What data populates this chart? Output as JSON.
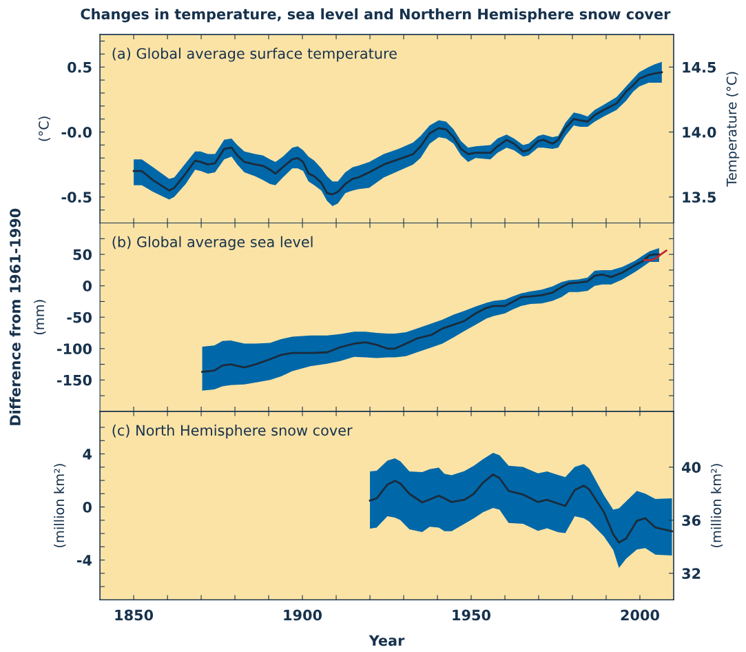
{
  "chart_data": [
    {
      "type": "line",
      "title": "Changes in temperature, sea level and Northern Hemisphere snow cover",
      "subtitle": "(a) Global average surface temperature",
      "ylabel": "(°C)",
      "y2label": "Temperature (°C)",
      "xlim": [
        1840,
        2010
      ],
      "xticks": [
        1850,
        {
          "value": 1860,
          "label": null
        },
        {
          "value": 1870,
          "label": null
        },
        {
          "value": 1880,
          "label": null
        },
        {
          "value": 1890,
          "label": null
        },
        1900,
        {
          "value": 1910,
          "label": null
        },
        {
          "value": 1920,
          "label": null
        },
        {
          "value": 1930,
          "label": null
        },
        {
          "value": 1940,
          "label": null
        },
        1950,
        {
          "value": 1960,
          "label": null
        },
        {
          "value": 1970,
          "label": null
        },
        {
          "value": 1980,
          "label": null
        },
        {
          "value": 1990,
          "label": null
        },
        2000
      ],
      "ylim": [
        -0.7,
        0.75
      ],
      "yticks": [
        {
          "value": -0.6,
          "label": null
        },
        -0.5,
        {
          "value": -0.4,
          "label": null
        },
        {
          "value": -0.3,
          "label": null
        },
        {
          "value": -0.2,
          "label": null
        },
        {
          "value": -0.1,
          "label": null
        },
        {
          "value": 0,
          "label": "-0.0"
        },
        {
          "value": 0.1,
          "label": null
        },
        {
          "value": 0.2,
          "label": null
        },
        {
          "value": 0.3,
          "label": null
        },
        {
          "value": 0.4,
          "label": null
        },
        0.5,
        {
          "value": 0.6,
          "label": null
        },
        {
          "value": 0.7,
          "label": null
        }
      ],
      "y2lim": [
        13.3,
        14.75
      ],
      "y2ticks": [
        13.5,
        {
          "value": 14,
          "label": "14.0"
        },
        14.5
      ],
      "tick_labels": "y",
      "grid": false,
      "series": [
        {
          "color": "#1b2b3c",
          "x": [
            1850,
            1852.4,
            1855.7,
            1860.5,
            1862,
            1865.4,
            1868.2,
            1869.8,
            1872,
            1874.1,
            1876.8,
            1879,
            1880.7,
            1882.8,
            1886,
            1888.3,
            1890.4,
            1892,
            1894.2,
            1897,
            1898.6,
            1900.2,
            1901.8,
            1903.5,
            1905.6,
            1907.3,
            1908.9,
            1910.5,
            1912.7,
            1914.9,
            1916.5,
            1919.8,
            1924.1,
            1928.5,
            1932.8,
            1935,
            1937.7,
            1940.4,
            1942.6,
            1944.8,
            1947,
            1949.1,
            1951.3,
            1955.7,
            1957.8,
            1960.5,
            1962.7,
            1965.4,
            1967,
            1969.8,
            1971.4,
            1974.1,
            1975.8,
            1977.9,
            1980.4,
            1982.3,
            1984.5,
            1986.6,
            1989.3,
            1993.1,
            1995.9,
            1998,
            1999.8,
            2002.6,
            2004.3,
            2006.5
          ],
          "values": [
            -0.3,
            -0.3,
            -0.37,
            -0.45,
            -0.43,
            -0.32,
            -0.22,
            -0.23,
            -0.25,
            -0.24,
            -0.13,
            -0.12,
            -0.18,
            -0.23,
            -0.25,
            -0.26,
            -0.29,
            -0.32,
            -0.27,
            -0.21,
            -0.2,
            -0.23,
            -0.32,
            -0.34,
            -0.39,
            -0.47,
            -0.48,
            -0.46,
            -0.4,
            -0.36,
            -0.35,
            -0.31,
            -0.25,
            -0.21,
            -0.17,
            -0.11,
            -0.01,
            0.03,
            0.02,
            -0.04,
            -0.13,
            -0.17,
            -0.16,
            -0.16,
            -0.11,
            -0.06,
            -0.09,
            -0.15,
            -0.14,
            -0.07,
            -0.06,
            -0.09,
            -0.06,
            0.03,
            0.1,
            0.09,
            0.08,
            0.13,
            0.17,
            0.22,
            0.31,
            0.36,
            0.41,
            0.44,
            0.45,
            0.46
          ],
          "lower": [
            -0.41,
            -0.41,
            -0.46,
            -0.52,
            -0.5,
            -0.4,
            -0.29,
            -0.3,
            -0.32,
            -0.31,
            -0.21,
            -0.19,
            -0.25,
            -0.31,
            -0.34,
            -0.37,
            -0.4,
            -0.41,
            -0.35,
            -0.28,
            -0.28,
            -0.3,
            -0.38,
            -0.41,
            -0.45,
            -0.53,
            -0.57,
            -0.55,
            -0.47,
            -0.45,
            -0.44,
            -0.43,
            -0.35,
            -0.3,
            -0.25,
            -0.2,
            -0.09,
            -0.04,
            -0.05,
            -0.09,
            -0.18,
            -0.23,
            -0.2,
            -0.21,
            -0.16,
            -0.12,
            -0.14,
            -0.19,
            -0.18,
            -0.12,
            -0.12,
            -0.13,
            -0.12,
            -0.03,
            0.05,
            0.04,
            0.04,
            0.08,
            0.12,
            0.17,
            0.24,
            0.31,
            0.35,
            0.38,
            0.38,
            0.38
          ],
          "upper": [
            -0.21,
            -0.21,
            -0.27,
            -0.36,
            -0.35,
            -0.24,
            -0.15,
            -0.15,
            -0.17,
            -0.17,
            -0.06,
            -0.05,
            -0.1,
            -0.15,
            -0.17,
            -0.18,
            -0.21,
            -0.23,
            -0.19,
            -0.12,
            -0.11,
            -0.14,
            -0.19,
            -0.22,
            -0.28,
            -0.34,
            -0.38,
            -0.38,
            -0.31,
            -0.27,
            -0.26,
            -0.23,
            -0.17,
            -0.13,
            -0.08,
            -0.03,
            0.05,
            0.09,
            0.08,
            0.02,
            -0.07,
            -0.12,
            -0.11,
            -0.1,
            -0.05,
            -0.02,
            -0.05,
            -0.1,
            -0.09,
            -0.03,
            -0.02,
            -0.04,
            -0.03,
            0.07,
            0.15,
            0.14,
            0.12,
            0.17,
            0.21,
            0.27,
            0.35,
            0.41,
            0.46,
            0.5,
            0.52,
            0.54
          ]
        }
      ]
    },
    {
      "type": "line",
      "subtitle": "(b) Global average sea level",
      "ylabel": "(mm)",
      "annotations": [
        "Difference from 1961-1990"
      ],
      "xlim": [
        1840,
        2010
      ],
      "xticks": [
        1850,
        {
          "value": 1860,
          "label": null
        },
        {
          "value": 1870,
          "label": null
        },
        {
          "value": 1880,
          "label": null
        },
        {
          "value": 1890,
          "label": null
        },
        1900,
        {
          "value": 1910,
          "label": null
        },
        {
          "value": 1920,
          "label": null
        },
        {
          "value": 1930,
          "label": null
        },
        {
          "value": 1940,
          "label": null
        },
        1950,
        {
          "value": 1960,
          "label": null
        },
        {
          "value": 1970,
          "label": null
        },
        {
          "value": 1980,
          "label": null
        },
        {
          "value": 1990,
          "label": null
        },
        2000
      ],
      "ylim": [
        -200,
        100
      ],
      "yticks": [
        {
          "value": -175,
          "label": null
        },
        -150,
        {
          "value": -125,
          "label": null
        },
        -100,
        {
          "value": -75,
          "label": null
        },
        -50,
        {
          "value": -25,
          "label": null
        },
        0,
        {
          "value": 25,
          "label": null
        },
        50,
        {
          "value": 75,
          "label": null
        }
      ],
      "tick_labels": "y",
      "grid": false,
      "series": [
        {
          "color": "#1b2b3c",
          "x": [
            1870.3,
            1873.9,
            1876.3,
            1878.7,
            1882.8,
            1886.1,
            1890.4,
            1893.7,
            1897,
            1902.4,
            1907.3,
            1911.1,
            1915.4,
            1918.7,
            1922,
            1925.2,
            1927.4,
            1930.7,
            1933.9,
            1938.3,
            1941.5,
            1944.8,
            1948,
            1951.3,
            1954.6,
            1956.7,
            1960,
            1962.2,
            1964.9,
            1967.6,
            1970.9,
            1974.1,
            1976.8,
            1979,
            1981.7,
            1984.5,
            1986.6,
            1988.8,
            1991.5,
            1994.8,
            1998.6,
            2000.8,
            2002.9,
            2004.6,
            2005.7
          ],
          "values": [
            -137,
            -135,
            -127,
            -125,
            -130,
            -125,
            -117,
            -110,
            -107,
            -107,
            -106,
            -98,
            -92,
            -90,
            -94,
            -100,
            -100,
            -92,
            -84,
            -78,
            -68,
            -62,
            -56,
            -44,
            -35,
            -32,
            -32,
            -26,
            -18,
            -17,
            -15,
            -11,
            -2,
            4,
            5,
            7,
            16,
            18,
            14,
            21,
            33,
            39,
            49,
            50,
            50
          ],
          "lower": [
            -167,
            -165,
            -160,
            -158,
            -157,
            -154,
            -150,
            -144,
            -136,
            -128,
            -124,
            -120,
            -113,
            -114,
            -115,
            -114,
            -114,
            -112,
            -106,
            -98,
            -92,
            -82,
            -72,
            -62,
            -52,
            -48,
            -44,
            -38,
            -32,
            -29,
            -28,
            -24,
            -18,
            -10,
            -10,
            -8,
            0,
            2,
            2,
            10,
            22,
            30,
            38,
            38,
            38
          ],
          "upper": [
            -97,
            -95,
            -88,
            -87,
            -92,
            -92,
            -91,
            -85,
            -81,
            -79,
            -79,
            -77,
            -73,
            -73,
            -75,
            -76,
            -76,
            -74,
            -68,
            -60,
            -54,
            -46,
            -40,
            -33,
            -27,
            -24,
            -22,
            -17,
            -12,
            -9,
            -6,
            -1,
            6,
            9,
            10,
            13,
            24,
            25,
            25,
            30,
            40,
            48,
            55,
            58,
            60
          ]
        },
        {
          "color": "#c0272d",
          "x": [
            2001.3,
            2003.5,
            2005.1,
            2006.2,
            2007.8
          ],
          "values": [
            41,
            41,
            45,
            50,
            56
          ]
        }
      ]
    },
    {
      "type": "line",
      "subtitle": "(c) North Hemisphere snow cover",
      "xlabel": "Year",
      "ylabel": "(million km²)",
      "y2label": "(million km²)",
      "xlim": [
        1840,
        2010
      ],
      "xticks": [
        1850,
        {
          "value": 1860,
          "label": null
        },
        {
          "value": 1870,
          "label": null
        },
        {
          "value": 1880,
          "label": null
        },
        {
          "value": 1890,
          "label": null
        },
        1900,
        {
          "value": 1910,
          "label": null
        },
        {
          "value": 1920,
          "label": null
        },
        {
          "value": 1930,
          "label": null
        },
        {
          "value": 1940,
          "label": null
        },
        1950,
        {
          "value": 1960,
          "label": null
        },
        {
          "value": 1970,
          "label": null
        },
        {
          "value": 1980,
          "label": null
        },
        {
          "value": 1990,
          "label": null
        },
        2000
      ],
      "ylim": [
        -7,
        7.2
      ],
      "yticks": [
        {
          "value": -6,
          "label": null
        },
        {
          "value": -5,
          "label": null
        },
        -4,
        {
          "value": -3,
          "label": null
        },
        {
          "value": -2,
          "label": null
        },
        {
          "value": -1,
          "label": null
        },
        0,
        {
          "value": 1,
          "label": null
        },
        {
          "value": 2,
          "label": null
        },
        {
          "value": 3,
          "label": null
        },
        4,
        {
          "value": 5,
          "label": null
        },
        {
          "value": 6,
          "label": null
        }
      ],
      "y2lim": [
        30,
        44.2
      ],
      "y2ticks": [
        32,
        36,
        40
      ],
      "grid": false,
      "series": [
        {
          "color": "#1b2b3c",
          "x": [
            1920,
            1922,
            1925.2,
            1927.4,
            1929,
            1931.7,
            1935.5,
            1937.7,
            1940.4,
            1942.1,
            1944.2,
            1948,
            1950.8,
            1953.5,
            1956.5,
            1958.4,
            1961.1,
            1965.4,
            1969.8,
            1972.5,
            1975.8,
            1977.9,
            1980.7,
            1983.4,
            1985,
            1989.3,
            1992.1,
            1993.8,
            1995.9,
            1999.1,
            2001.6,
            2004.6,
            2009.5
          ],
          "values": [
            0.48,
            0.65,
            1.69,
            1.97,
            1.77,
            0.99,
            0.34,
            0.56,
            0.85,
            0.65,
            0.37,
            0.54,
            0.99,
            1.83,
            2.45,
            2.17,
            1.21,
            0.93,
            0.37,
            0.54,
            0.25,
            0.08,
            1.27,
            1.61,
            1.32,
            -0.37,
            -2.06,
            -2.68,
            -2.39,
            -1.04,
            -0.85,
            -1.55,
            -1.83
          ],
          "lower": [
            -1.63,
            -1.55,
            -0.7,
            -0.8,
            -0.99,
            -1.69,
            -1.89,
            -1.49,
            -1.55,
            -1.83,
            -1.83,
            -1.27,
            -0.85,
            -0.4,
            -0.08,
            -0.2,
            -1.21,
            -1.27,
            -1.8,
            -1.61,
            -1.9,
            -1.97,
            -0.7,
            -0.85,
            -1.1,
            -2.2,
            -3.24,
            -4.59,
            -3.9,
            -3.2,
            -3.1,
            -3.6,
            -3.66
          ],
          "upper": [
            2.68,
            2.73,
            3.5,
            3.66,
            3.45,
            2.68,
            2.62,
            2.85,
            2.96,
            2.5,
            2.39,
            2.7,
            3.1,
            3.6,
            4.08,
            3.9,
            3.1,
            3.01,
            2.54,
            2.68,
            2.4,
            2.25,
            3.01,
            3.24,
            2.9,
            0.9,
            -0.2,
            -0.1,
            0.42,
            1.21,
            1.0,
            0.6,
            0.65
          ]
        }
      ]
    }
  ]
}
